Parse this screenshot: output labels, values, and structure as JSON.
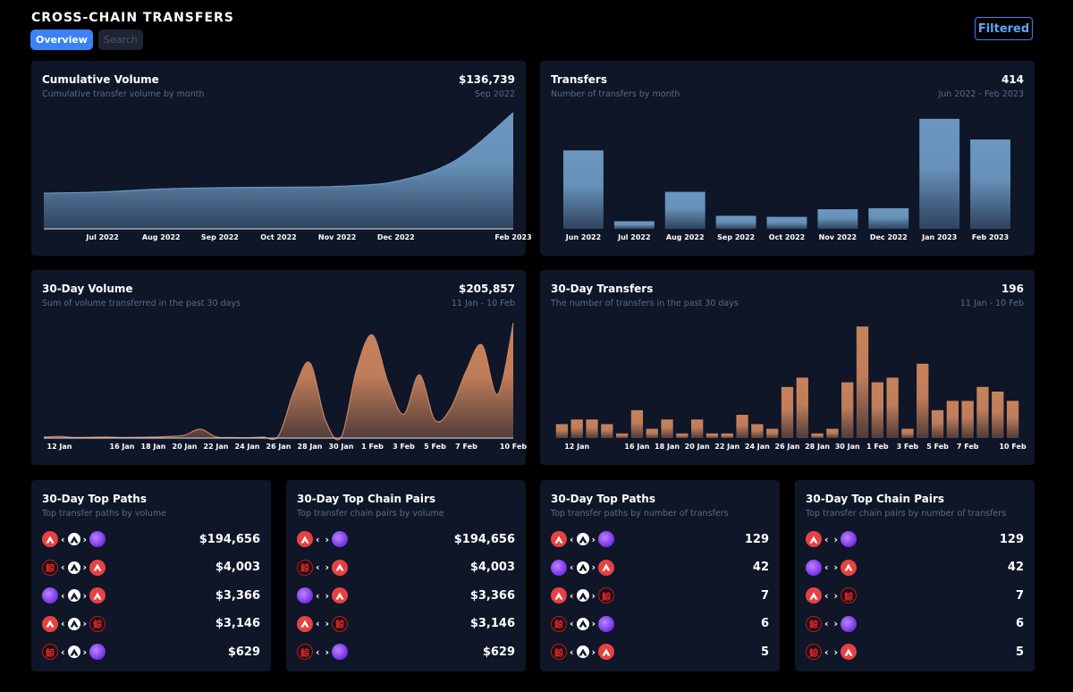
{
  "header": {
    "title": "CROSS-CHAIN TRANSFERS",
    "tab_overview": "Overview",
    "tab_search": "Search",
    "filter_label": "Filtered"
  },
  "colors": {
    "blue": "#6b97c0",
    "orange": "#c8825c",
    "card": "#0e1628",
    "accent": "#3b82f6"
  },
  "cum": {
    "title": "Cumulative Volume",
    "sub": "Cumulative transfer volume by month",
    "value": "$136,739",
    "range": "Sep 2022",
    "chart_data": {
      "type": "area",
      "x": [
        "Jun 2022",
        "Jul 2022",
        "Aug 2022",
        "Sep 2022",
        "Oct 2022",
        "Nov 2022",
        "Dec 2022",
        "Jan 2023",
        "Feb 2023"
      ],
      "ticks": [
        "Jul 2022",
        "Aug 2022",
        "Sep 2022",
        "Oct 2022",
        "Nov 2022",
        "Dec 2022",
        "Feb 2023"
      ],
      "values": [
        42000,
        43500,
        47000,
        48500,
        49000,
        50000,
        56000,
        80000,
        136739
      ],
      "ylim": [
        0,
        140000
      ]
    }
  },
  "transfers": {
    "title": "Transfers",
    "sub": "Number of transfers by month",
    "value": "414",
    "range": "Jun 2022 - Feb 2023",
    "chart_data": {
      "type": "bar",
      "categories": [
        "Jun 2022",
        "Jul 2022",
        "Aug 2022",
        "Sep 2022",
        "Oct 2022",
        "Nov 2022",
        "Dec 2022",
        "Jan 2023",
        "Feb 2023"
      ],
      "values": [
        72,
        7,
        34,
        12,
        11,
        18,
        19,
        101,
        82
      ],
      "ylim": [
        0,
        105
      ]
    }
  },
  "vol30": {
    "title": "30-Day Volume",
    "sub": "Sum of volume transferred in the past 30 days",
    "value": "$205,857",
    "range": "11 Jan - 10 Feb",
    "chart_data": {
      "type": "area",
      "x": [
        "11 Jan",
        "12 Jan",
        "13 Jan",
        "14 Jan",
        "15 Jan",
        "16 Jan",
        "17 Jan",
        "18 Jan",
        "19 Jan",
        "20 Jan",
        "21 Jan",
        "22 Jan",
        "23 Jan",
        "24 Jan",
        "25 Jan",
        "26 Jan",
        "27 Jan",
        "28 Jan",
        "29 Jan",
        "30 Jan",
        "31 Jan",
        "1 Feb",
        "2 Feb",
        "3 Feb",
        "4 Feb",
        "5 Feb",
        "6 Feb",
        "7 Feb",
        "8 Feb",
        "9 Feb",
        "10 Feb"
      ],
      "ticks": [
        "12 Jan",
        "16 Jan",
        "18 Jan",
        "20 Jan",
        "22 Jan",
        "24 Jan",
        "26 Jan",
        "28 Jan",
        "30 Jan",
        "1 Feb",
        "3 Feb",
        "5 Feb",
        "7 Feb",
        "10 Feb"
      ],
      "values": [
        500,
        800,
        300,
        400,
        500,
        300,
        400,
        500,
        800,
        1500,
        4500,
        600,
        300,
        200,
        500,
        1200,
        24000,
        38000,
        9000,
        500,
        35000,
        52000,
        28000,
        12000,
        32000,
        9000,
        15000,
        34000,
        47000,
        22000,
        58000
      ],
      "ylim": [
        0,
        60000
      ]
    }
  },
  "tr30": {
    "title": "30-Day Transfers",
    "sub": "The number of transfers in the past 30 days",
    "value": "196",
    "range": "11 Jan - 10 Feb",
    "chart_data": {
      "type": "bar",
      "categories": [
        "11 Jan",
        "12 Jan",
        "13 Jan",
        "14 Jan",
        "15 Jan",
        "16 Jan",
        "17 Jan",
        "18 Jan",
        "19 Jan",
        "20 Jan",
        "21 Jan",
        "22 Jan",
        "23 Jan",
        "24 Jan",
        "25 Jan",
        "26 Jan",
        "27 Jan",
        "28 Jan",
        "29 Jan",
        "30 Jan",
        "31 Jan",
        "1 Feb",
        "2 Feb",
        "3 Feb",
        "4 Feb",
        "5 Feb",
        "6 Feb",
        "7 Feb",
        "8 Feb",
        "9 Feb",
        "10 Feb"
      ],
      "ticks": [
        "12 Jan",
        "16 Jan",
        "18 Jan",
        "20 Jan",
        "22 Jan",
        "24 Jan",
        "26 Jan",
        "28 Jan",
        "30 Jan",
        "1 Feb",
        "3 Feb",
        "5 Feb",
        "7 Feb",
        "10 Feb"
      ],
      "values": [
        3,
        4,
        4,
        3,
        1,
        6,
        2,
        4,
        1,
        4,
        1,
        1,
        5,
        3,
        2,
        11,
        13,
        1,
        2,
        12,
        24,
        12,
        13,
        2,
        16,
        6,
        8,
        8,
        11,
        10,
        8
      ],
      "ylim": [
        0,
        25
      ]
    }
  },
  "panels": [
    {
      "title": "30-Day Top Paths",
      "sub": "Top transfer paths by volume",
      "mode": "path",
      "rows": [
        {
          "a": "avalanche",
          "m": "avalanche",
          "b": "purple",
          "value": "$194,656"
        },
        {
          "a": "kanji",
          "m": "avalanche",
          "b": "avalanche",
          "value": "$4,003"
        },
        {
          "a": "purple",
          "m": "avalanche",
          "b": "avalanche",
          "value": "$3,366"
        },
        {
          "a": "avalanche",
          "m": "avalanche",
          "b": "kanji",
          "value": "$3,146"
        },
        {
          "a": "kanji",
          "m": "avalanche",
          "b": "purple",
          "value": "$629"
        }
      ]
    },
    {
      "title": "30-Day Top Chain Pairs",
      "sub": "Top transfer chain pairs by volume",
      "mode": "pair",
      "rows": [
        {
          "a": "avalanche",
          "b": "purple",
          "value": "$194,656"
        },
        {
          "a": "kanji",
          "b": "avalanche",
          "value": "$4,003"
        },
        {
          "a": "purple",
          "b": "avalanche",
          "value": "$3,366"
        },
        {
          "a": "avalanche",
          "b": "kanji",
          "value": "$3,146"
        },
        {
          "a": "kanji",
          "b": "purple",
          "value": "$629"
        }
      ]
    },
    {
      "title": "30-Day Top Paths",
      "sub": "Top transfer paths by number of transfers",
      "mode": "path",
      "rows": [
        {
          "a": "avalanche",
          "m": "avalanche",
          "b": "purple",
          "value": "129"
        },
        {
          "a": "purple",
          "m": "avalanche",
          "b": "avalanche",
          "value": "42"
        },
        {
          "a": "avalanche",
          "m": "avalanche",
          "b": "kanji",
          "value": "7"
        },
        {
          "a": "kanji",
          "m": "avalanche",
          "b": "purple",
          "value": "6"
        },
        {
          "a": "kanji",
          "m": "avalanche",
          "b": "avalanche",
          "value": "5"
        }
      ]
    },
    {
      "title": "30-Day Top Chain Pairs",
      "sub": "Top transfer chain pairs by number of transfers",
      "mode": "pair",
      "rows": [
        {
          "a": "avalanche",
          "b": "purple",
          "value": "129"
        },
        {
          "a": "purple",
          "b": "avalanche",
          "value": "42"
        },
        {
          "a": "avalanche",
          "b": "kanji",
          "value": "7"
        },
        {
          "a": "kanji",
          "b": "purple",
          "value": "6"
        },
        {
          "a": "kanji",
          "b": "avalanche",
          "value": "5"
        }
      ]
    }
  ],
  "kanji_glyph": "鯨",
  "arrows": {
    "left": "‹",
    "right": "›"
  }
}
